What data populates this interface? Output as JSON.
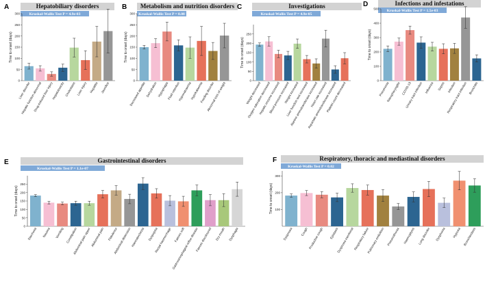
{
  "colors": {
    "title_bg": "#d3d3d3",
    "test_bg": "#7fa9d8",
    "axis": "#444444",
    "error": "#333333",
    "palette": [
      "#7fb2ce",
      "#f6bfd3",
      "#e88a80",
      "#2c6591",
      "#b7d79e",
      "#a1813f",
      "#969696",
      "#e6715a",
      "#b9c0dd",
      "#f09070",
      "#2e9e5b",
      "#e09fca",
      "#a8c87a",
      "#c9a3d0",
      "#d6d6d6"
    ]
  },
  "chart_data": [
    {
      "id": "A",
      "type": "bar",
      "title": "Hepatobiliary disorders",
      "test": "Kruskal-Wallis Test P = 4.9e-03",
      "ylabel": "Time to onset (days)",
      "ylim": [
        0,
        300
      ],
      "yticks": [
        0,
        50,
        100,
        150,
        200,
        250,
        300
      ],
      "categories": [
        "Liver disorder",
        "Hepatic function abnormal",
        "Drug-induced liver injury",
        "Hepatotoxicity",
        "Cholestasis",
        "Liver injury",
        "Hepatitis",
        "Jaundice"
      ],
      "values": [
        65,
        55,
        30,
        58,
        148,
        92,
        175,
        222
      ],
      "errors": [
        13,
        12,
        10,
        16,
        42,
        42,
        68,
        98
      ],
      "colors": [
        "#7fb2ce",
        "#f6bfd3",
        "#e88a80",
        "#2c6591",
        "#b7d79e",
        "#e6715a",
        "#c4aa86",
        "#969696"
      ]
    },
    {
      "id": "B",
      "type": "bar",
      "title": "Metabolism and nutrition disorders",
      "test": "Kruskal-Wallis Test P = 0.08",
      "ylabel": "Time to onset (days)",
      "ylim": [
        0,
        300
      ],
      "yticks": [
        0,
        50,
        100,
        150,
        200,
        250,
        300
      ],
      "categories": [
        "Decreased appetite",
        "Dehydration",
        "Hypophagia",
        "Fluid retention",
        "Hyponatraemia",
        "Hypokalaemia",
        "Feeding disorder",
        "Abnormal loss of weight"
      ],
      "values": [
        150,
        168,
        220,
        158,
        148,
        178,
        133,
        202
      ],
      "errors": [
        8,
        20,
        42,
        25,
        48,
        65,
        38,
        55
      ],
      "colors": [
        "#7fb2ce",
        "#f6bfd3",
        "#e88a80",
        "#2c6591",
        "#b7d79e",
        "#e6715a",
        "#a1813f",
        "#969696"
      ]
    },
    {
      "id": "C",
      "type": "bar",
      "title": "Investigations",
      "test": "Kruskal-Wallis Test P = 4.9e-05",
      "ylabel": "Time to onset (days)",
      "ylim": [
        0,
        300
      ],
      "yticks": [
        0,
        50,
        100,
        150,
        200,
        250
      ],
      "categories": [
        "Weight decreased",
        "Oxygen saturation decreased",
        "Hepatic enzyme increased",
        "Blood pressure increased",
        "Weight increased",
        "Liver function test increased",
        "Alanine aminotransferase increased",
        "Heart rate increased",
        "Aspartate aminotransferase increased",
        "Platelet count decreased"
      ],
      "values": [
        193,
        210,
        143,
        135,
        198,
        115,
        92,
        225,
        60,
        120
      ],
      "errors": [
        9,
        25,
        20,
        22,
        25,
        20,
        25,
        45,
        20,
        30
      ],
      "colors": [
        "#7fb2ce",
        "#f6bfd3",
        "#e88a80",
        "#2c6591",
        "#b7d79e",
        "#e6715a",
        "#a1813f",
        "#969696",
        "#2c6591",
        "#e6715a"
      ]
    },
    {
      "id": "D",
      "type": "bar",
      "title": "Infections and infestations",
      "test": "Kruskal-Wallis Test P = 1.5e-03",
      "ylabel": "Time to onset (days)",
      "ylim": [
        0,
        500
      ],
      "yticks": [
        0,
        100,
        200,
        300,
        400,
        500
      ],
      "categories": [
        "Pneumonia",
        "Nasopharyngitis",
        "COVID-19",
        "Urinary tract infection",
        "Influenza",
        "Sepsis",
        "Infection",
        "Respiratory tract infection",
        "Bronchitis"
      ],
      "values": [
        222,
        272,
        352,
        265,
        237,
        222,
        225,
        440,
        155
      ],
      "errors": [
        20,
        25,
        28,
        40,
        30,
        35,
        35,
        75,
        25
      ],
      "colors": [
        "#7fb2ce",
        "#f6bfd3",
        "#e88a80",
        "#2c6591",
        "#b7d79e",
        "#e6715a",
        "#a1813f",
        "#969696",
        "#2c6591"
      ]
    },
    {
      "id": "E",
      "type": "bar",
      "title": "Gastrointestinal disorders",
      "test": "Kruskal-Wallis Test P = 1.1e-07",
      "ylabel": "Time to onset (days)",
      "ylim": [
        0,
        300
      ],
      "yticks": [
        0,
        50,
        100,
        150,
        200,
        250
      ],
      "categories": [
        "Diarrhoea",
        "Nausea",
        "Vomiting",
        "Constipation",
        "Abdominal pain upper",
        "Abdominal pain",
        "Flatulence",
        "Abdominal distension",
        "Haematochezia",
        "Dyspepsia",
        "Rectal haemorrhage",
        "Faeces soft",
        "Gastrooesophageal reflux disease",
        "Faeces discoloured",
        "Dry mouth",
        "Dysphagia"
      ],
      "values": [
        182,
        140,
        135,
        137,
        137,
        190,
        213,
        162,
        253,
        195,
        152,
        148,
        213,
        155,
        155,
        220
      ],
      "errors": [
        6,
        8,
        8,
        12,
        12,
        22,
        28,
        28,
        35,
        28,
        30,
        30,
        32,
        33,
        38,
        42
      ],
      "colors": [
        "#7fb2ce",
        "#f6bfd3",
        "#e88a80",
        "#2c6591",
        "#b7d79e",
        "#e6715a",
        "#c4aa86",
        "#969696",
        "#2c6591",
        "#e6715a",
        "#b9c0dd",
        "#f09070",
        "#2e9e5b",
        "#e09fca",
        "#a8c87a",
        "#d6d6d6"
      ]
    },
    {
      "id": "F",
      "type": "bar",
      "title": "Respiratory, thoracic and mediastinal disorders",
      "test": "Kruskal-Wallis Test P = 0.02",
      "ylabel": "Time to onset (days)",
      "ylim": [
        0,
        330
      ],
      "yticks": [
        100,
        200,
        300
      ],
      "categories": [
        "Dyspnoea",
        "Cough",
        "Productive cough",
        "Epistaxis",
        "Dyspnoea exertional",
        "Respiratory failure",
        "Pulmonary embolism",
        "Pneumothorax",
        "Haemoptysis",
        "Lung disorder",
        "Dysphonia",
        "Hypoxia",
        "Bronchiectasis"
      ],
      "values": [
        183,
        198,
        188,
        172,
        228,
        216,
        183,
        118,
        175,
        222,
        140,
        272,
        243
      ],
      "errors": [
        10,
        15,
        18,
        25,
        25,
        30,
        35,
        18,
        30,
        45,
        28,
        55,
        40
      ],
      "colors": [
        "#7fb2ce",
        "#f6bfd3",
        "#e88a80",
        "#2c6591",
        "#b7d79e",
        "#e6715a",
        "#a1813f",
        "#969696",
        "#2c6591",
        "#e6715a",
        "#b9c0dd",
        "#f09070",
        "#2e9e5b"
      ]
    }
  ]
}
